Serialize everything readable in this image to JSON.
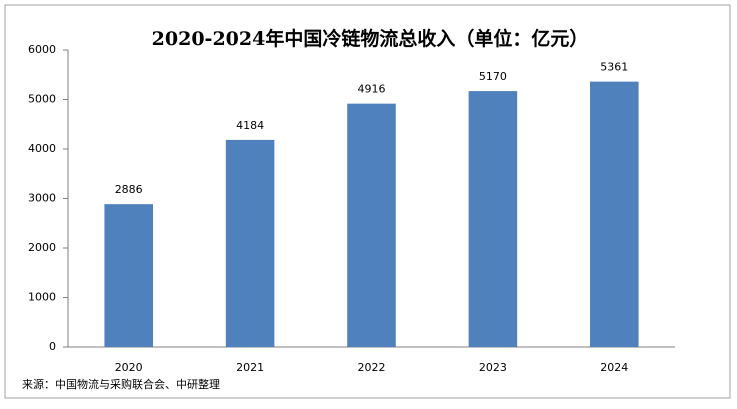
{
  "chart_data": {
    "type": "bar",
    "title": "2020-2024年中国冷链物流总收入（单位：亿元）",
    "categories": [
      "2020",
      "2021",
      "2022",
      "2023",
      "2024"
    ],
    "values": [
      2886,
      4184,
      4916,
      5170,
      5361
    ],
    "color": "#4f81bd",
    "ylim": [
      0,
      6000
    ],
    "yticks": [
      0,
      1000,
      2000,
      3000,
      4000,
      5000,
      6000
    ],
    "grid": false,
    "source": "来源：中国物流与采购联合会、中研整理"
  }
}
